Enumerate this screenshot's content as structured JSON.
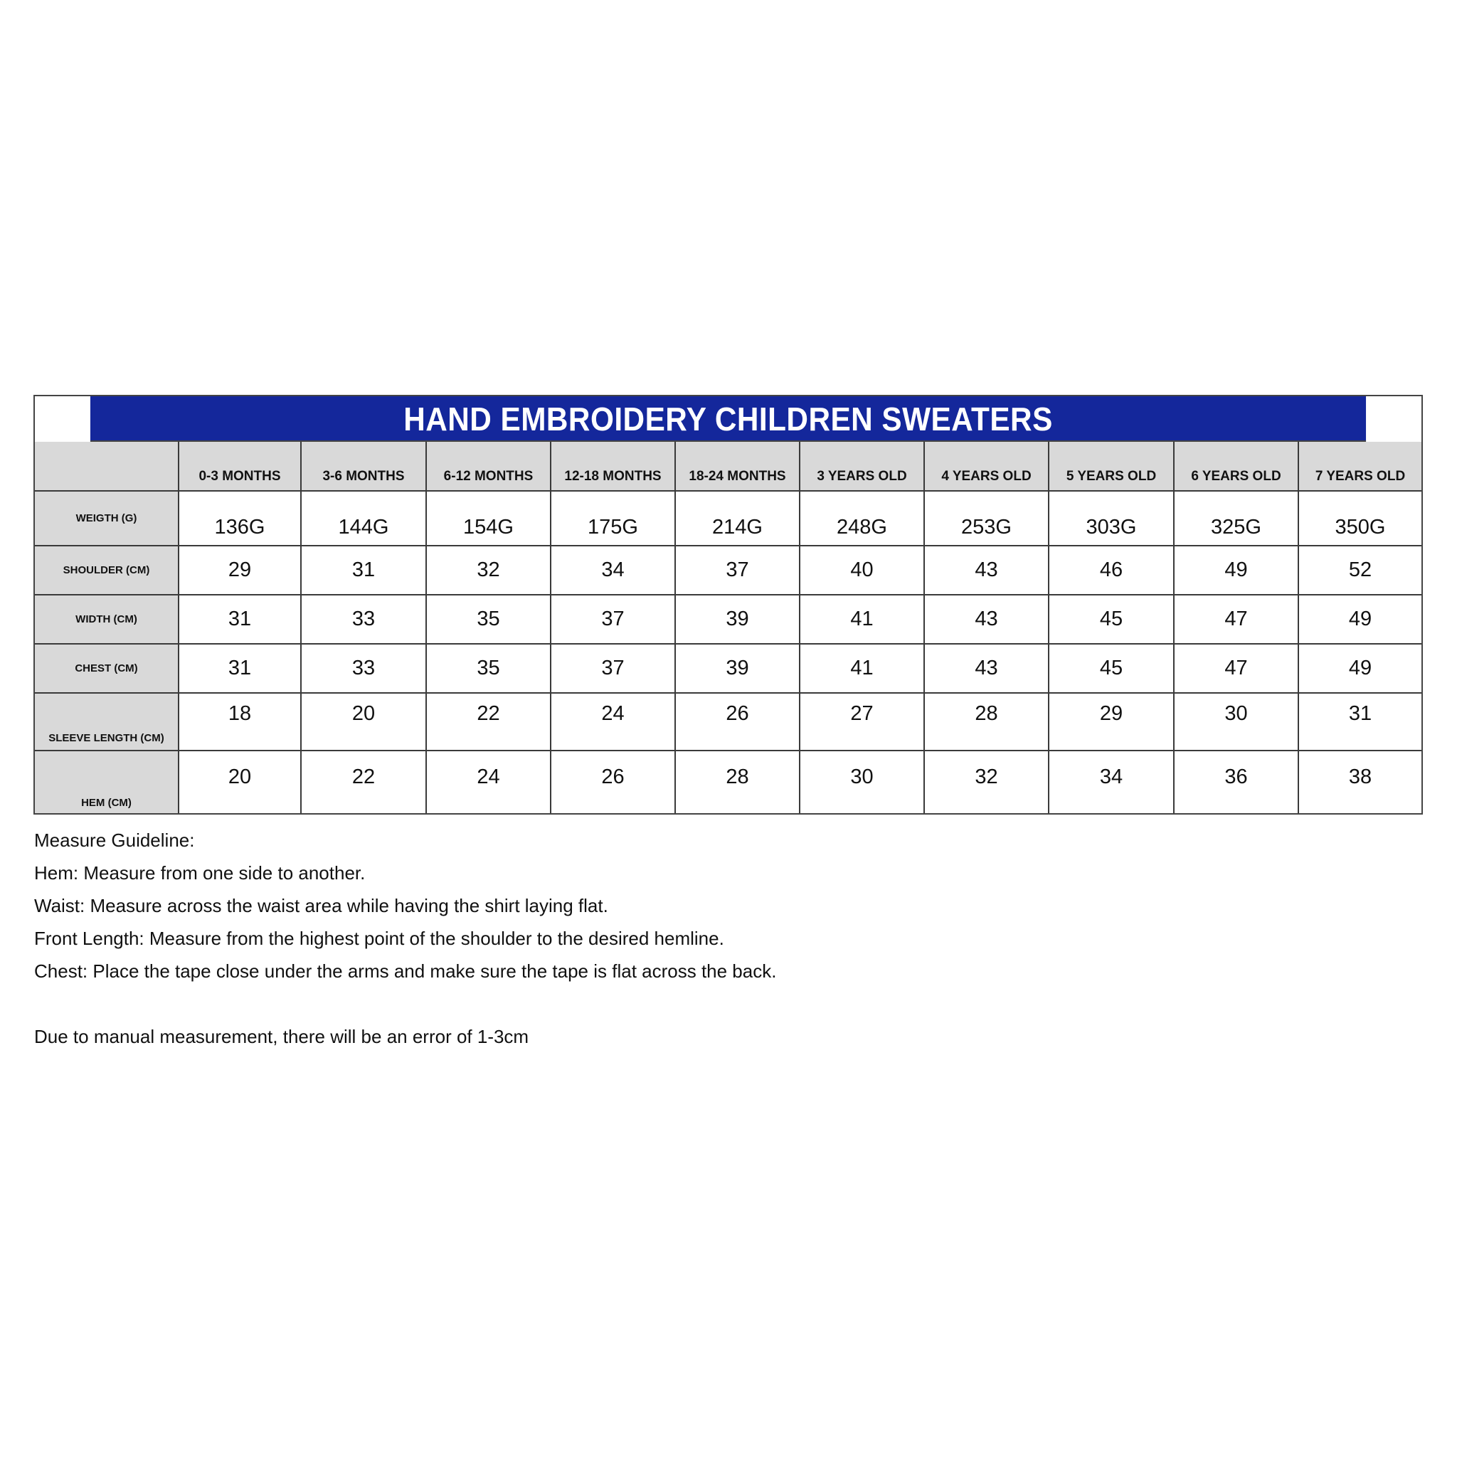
{
  "title": "HAND EMBROIDERY CHILDREN SWEATERS",
  "columns": [
    "",
    "0-3 MONTHS",
    "3-6 MONTHS",
    "6-12 MONTHS",
    "12-18 MONTHS",
    "18-24 MONTHS",
    "3 YEARS OLD",
    "4 YEARS OLD",
    "5 YEARS OLD",
    "6 YEARS OLD",
    "7 YEARS OLD"
  ],
  "rows": [
    {
      "label": "WEIGTH (G)",
      "values": [
        "136G",
        "144G",
        "154G",
        "175G",
        "214G",
        "248G",
        "253G",
        "303G",
        "325G",
        "350G"
      ]
    },
    {
      "label": "SHOULDER (CM)",
      "values": [
        "29",
        "31",
        "32",
        "34",
        "37",
        "40",
        "43",
        "46",
        "49",
        "52"
      ]
    },
    {
      "label": "WIDTH (CM)",
      "values": [
        "31",
        "33",
        "35",
        "37",
        "39",
        "41",
        "43",
        "45",
        "47",
        "49"
      ]
    },
    {
      "label": "CHEST (CM)",
      "values": [
        "31",
        "33",
        "35",
        "37",
        "39",
        "41",
        "43",
        "45",
        "47",
        "49"
      ]
    },
    {
      "label": "SLEEVE LENGTH (CM)",
      "values": [
        "18",
        "20",
        "22",
        "24",
        "26",
        "27",
        "28",
        "29",
        "30",
        "31"
      ]
    },
    {
      "label": "HEM (CM)",
      "values": [
        "20",
        "22",
        "24",
        "26",
        "28",
        "30",
        "32",
        "34",
        "36",
        "38"
      ]
    }
  ],
  "notes": {
    "heading": "Measure Guideline:",
    "lines": [
      "Hem: Measure from one side to another.",
      "Waist: Measure across the waist area while having the shirt laying flat.",
      "Front Length: Measure from the highest point of the shoulder to the desired hemline.",
      "Chest: Place the tape close under the arms and make sure the tape is flat across the back."
    ],
    "disclaimer": "Due to manual measurement, there will be an error of 1-3cm"
  },
  "colors": {
    "title_bg": "#14279b",
    "header_bg": "#d9d9d9"
  }
}
